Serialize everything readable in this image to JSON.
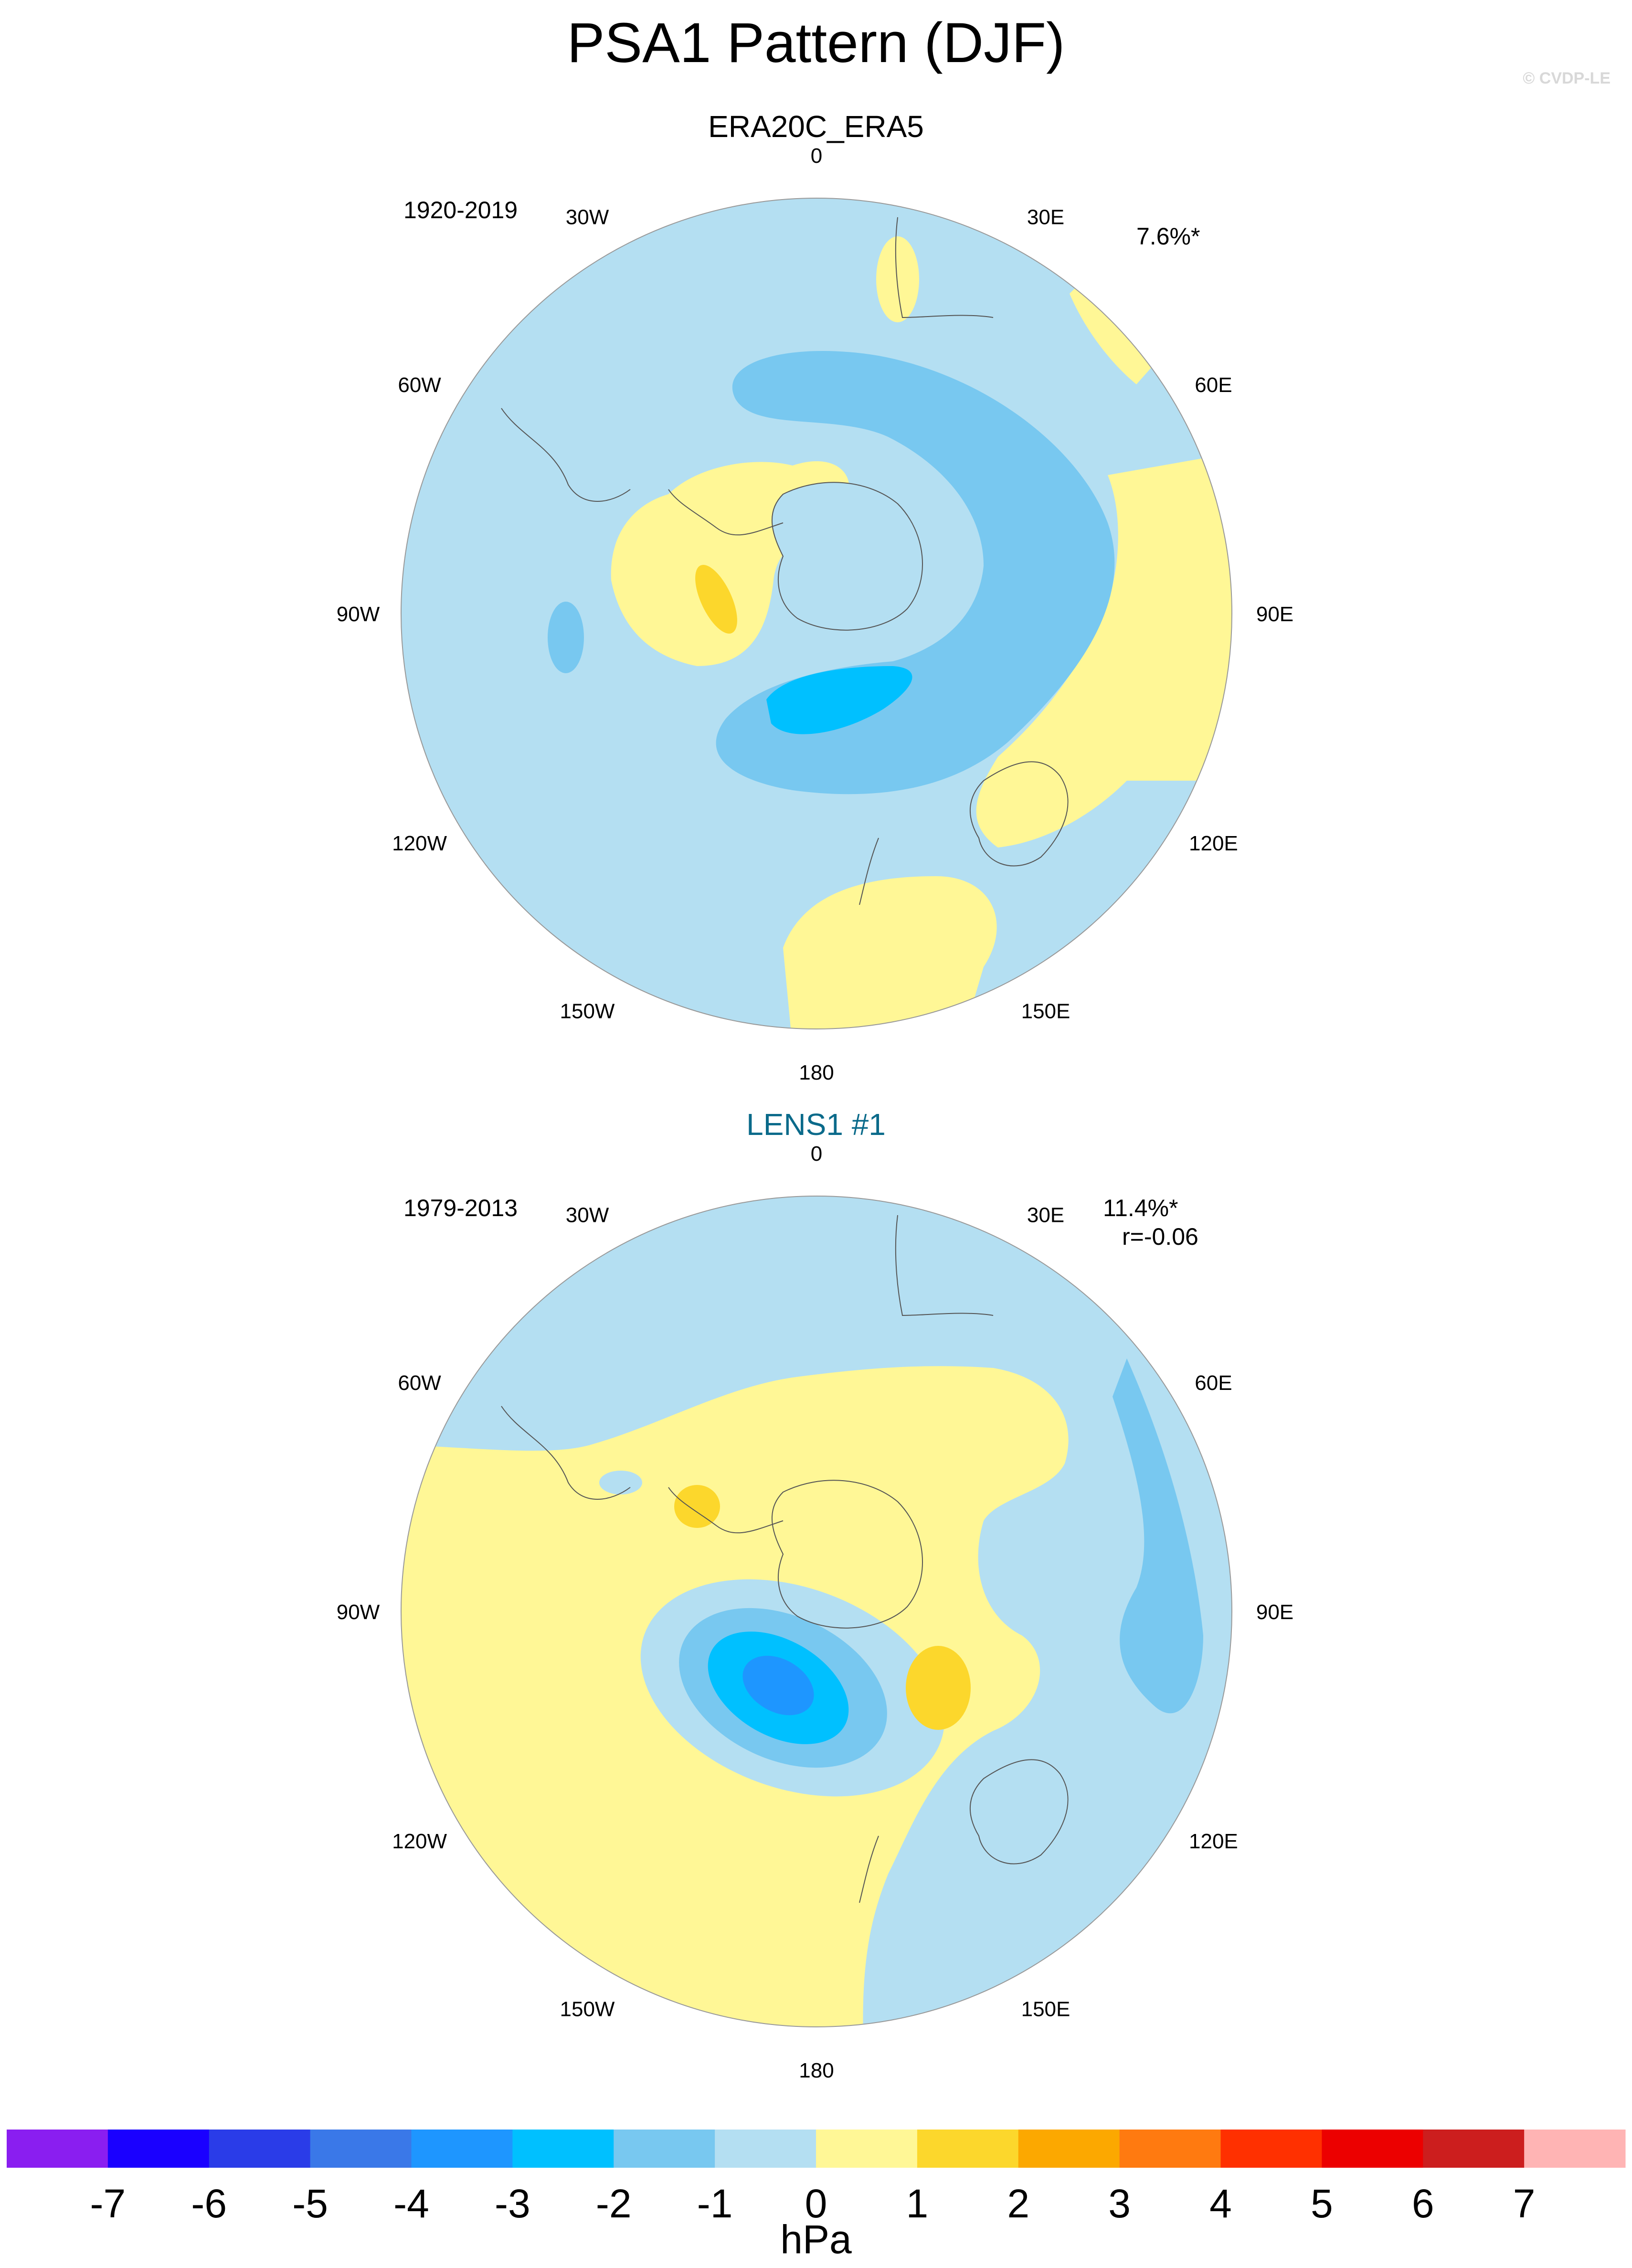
{
  "title": "PSA1 Pattern (DJF)",
  "copyright": "© CVDP-LE",
  "panels": [
    {
      "title": "ERA20C_ERA5",
      "title_color": "#000000",
      "period": "1920-2019",
      "variance": "7.6%*",
      "correlation": "",
      "lon_labels": [
        "0",
        "30E",
        "60E",
        "90E",
        "120E",
        "150E",
        "180",
        "150W",
        "120W",
        "90W",
        "60W",
        "30W"
      ]
    },
    {
      "title": "LENS1 #1",
      "title_color": "#0a6a8a",
      "period": "1979-2013",
      "variance": "11.4%*",
      "correlation": "r=-0.06",
      "lon_labels": [
        "0",
        "30E",
        "60E",
        "90E",
        "120E",
        "150E",
        "180",
        "150W",
        "120W",
        "90W",
        "60W",
        "30W"
      ]
    }
  ],
  "colorbar": {
    "units": "hPa",
    "labels": [
      "-7",
      "-6",
      "-5",
      "-4",
      "-3",
      "-2",
      "-1",
      "0",
      "1",
      "2",
      "3",
      "4",
      "5",
      "6",
      "7"
    ],
    "colors": [
      "#8a1ef0",
      "#1a00ff",
      "#2a3ce8",
      "#3a78e8",
      "#1e96ff",
      "#00c0ff",
      "#78c8f0",
      "#b4dff2",
      "#fff796",
      "#fcd72c",
      "#fca800",
      "#ff7a10",
      "#ff3000",
      "#ec0000",
      "#cc1e1e",
      "#ffb4b4"
    ]
  },
  "palette": {
    "light_blue": "#b4dff2",
    "mid_blue": "#78c8f0",
    "cyan": "#00c0ff",
    "blue": "#1e96ff",
    "light_yellow": "#fff796",
    "yellow": "#fcd72c"
  },
  "icons": [
    "antarctica-coastline-icon"
  ]
}
